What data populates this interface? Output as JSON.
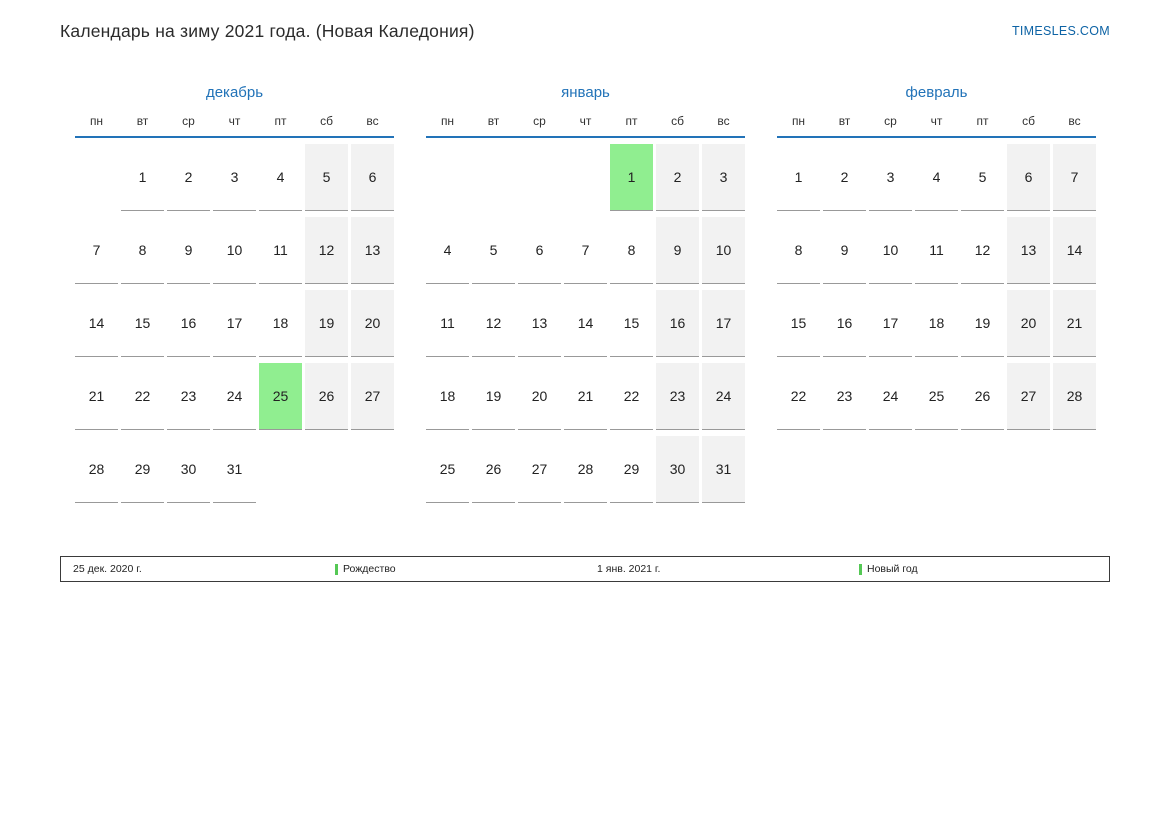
{
  "page": {
    "title": "Календарь на зиму 2021 года. (Новая Каледония)",
    "site_link": "TIMESLES.COM"
  },
  "weekdays": [
    "пн",
    "вт",
    "ср",
    "чт",
    "пт",
    "сб",
    "вс"
  ],
  "months": [
    {
      "name": "декабрь",
      "weeks": [
        [
          null,
          1,
          2,
          3,
          4,
          5,
          6
        ],
        [
          7,
          8,
          9,
          10,
          11,
          12,
          13
        ],
        [
          14,
          15,
          16,
          17,
          18,
          19,
          20
        ],
        [
          21,
          22,
          23,
          24,
          25,
          26,
          27
        ],
        [
          28,
          29,
          30,
          31,
          null,
          null,
          null
        ]
      ],
      "highlighted": [
        25
      ]
    },
    {
      "name": "январь",
      "weeks": [
        [
          null,
          null,
          null,
          null,
          1,
          2,
          3
        ],
        [
          4,
          5,
          6,
          7,
          8,
          9,
          10
        ],
        [
          11,
          12,
          13,
          14,
          15,
          16,
          17
        ],
        [
          18,
          19,
          20,
          21,
          22,
          23,
          24
        ],
        [
          25,
          26,
          27,
          28,
          29,
          30,
          31
        ]
      ],
      "highlighted": [
        1
      ]
    },
    {
      "name": "февраль",
      "weeks": [
        [
          1,
          2,
          3,
          4,
          5,
          6,
          7
        ],
        [
          8,
          9,
          10,
          11,
          12,
          13,
          14
        ],
        [
          15,
          16,
          17,
          18,
          19,
          20,
          21
        ],
        [
          22,
          23,
          24,
          25,
          26,
          27,
          28
        ]
      ],
      "highlighted": []
    }
  ],
  "legend": [
    {
      "date": "25 дек. 2020 г.",
      "label": "Рождество"
    },
    {
      "date": "1 янв. 2021 г.",
      "label": "Новый год"
    }
  ],
  "colors": {
    "accent_blue": "#2273b8",
    "holiday_green": "#90ee90",
    "weekend_bg": "#f2f2f2",
    "legend_marker_green": "#55c855",
    "link_blue": "#0d63a5"
  }
}
